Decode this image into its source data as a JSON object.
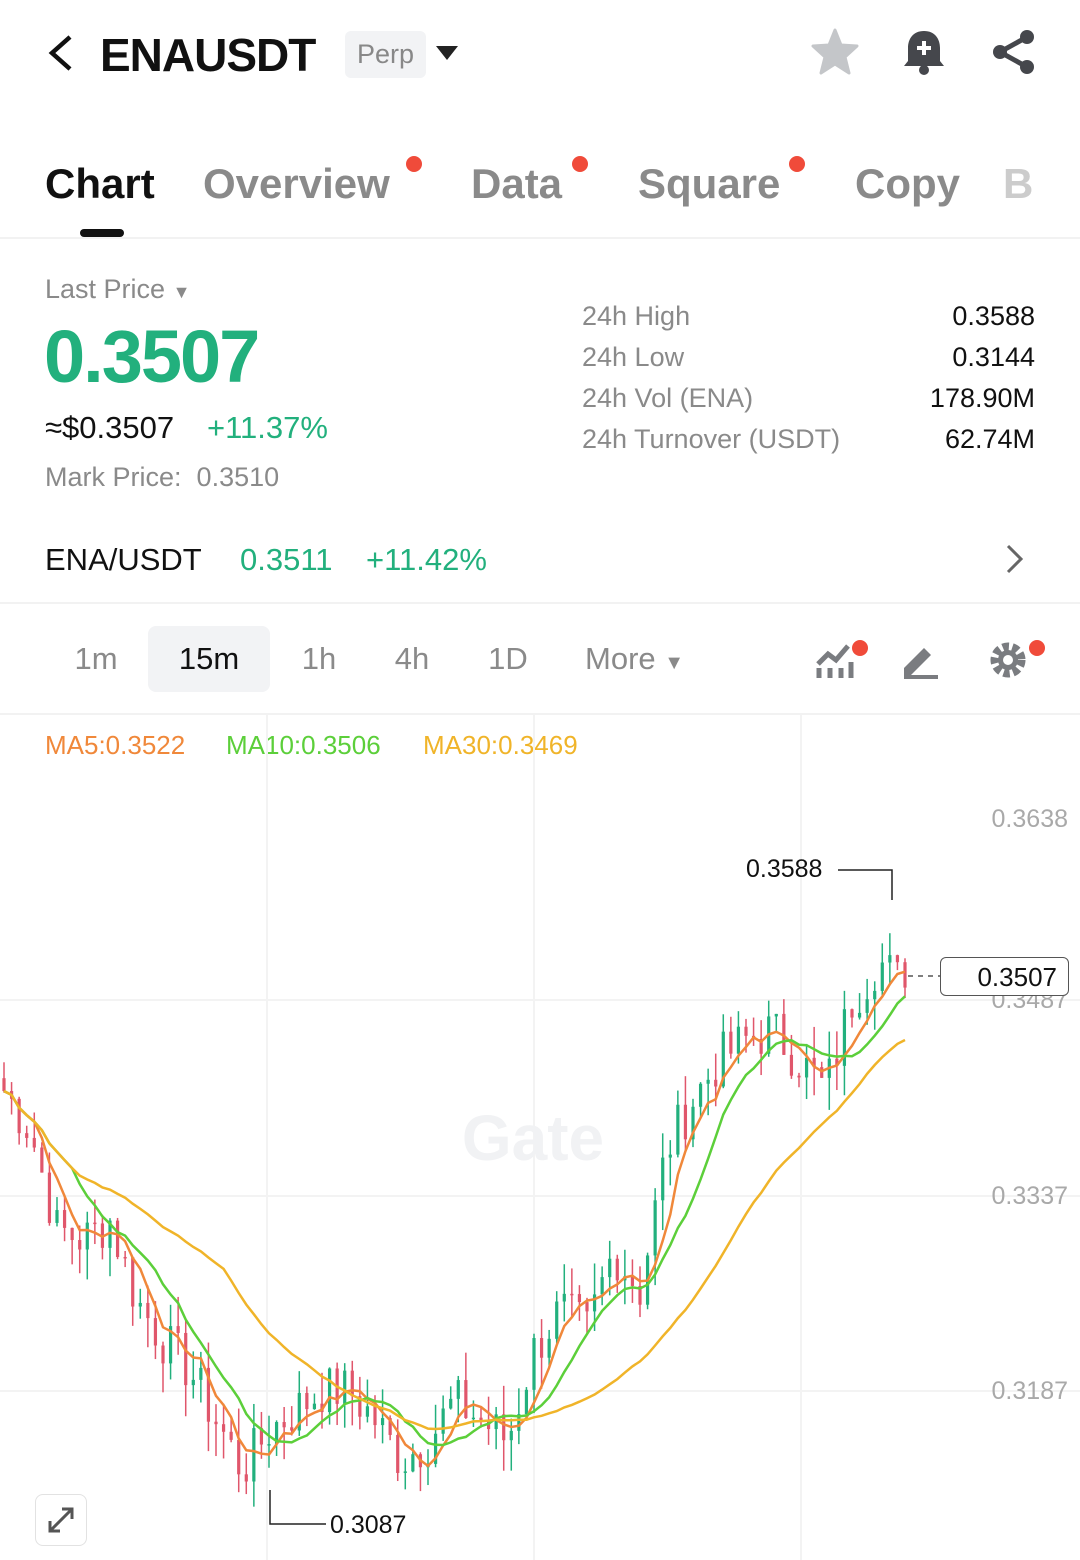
{
  "header": {
    "symbol": "ENAUSDT",
    "type_badge": "Perp"
  },
  "tabs": [
    {
      "label": "Chart",
      "active": true,
      "dot": false
    },
    {
      "label": "Overview",
      "dot": true
    },
    {
      "label": "Data",
      "dot": true
    },
    {
      "label": "Square",
      "dot": true
    },
    {
      "label": "Copy",
      "dot": false
    },
    {
      "label": "B",
      "dot": false
    }
  ],
  "price": {
    "label": "Last Price",
    "value": "0.3507",
    "usd": "≈$0.3507",
    "change": "+11.37%",
    "mark_label": "Mark Price:",
    "mark_value": "0.3510"
  },
  "stats": [
    {
      "label": "24h High",
      "value": "0.3588"
    },
    {
      "label": "24h Low",
      "value": "0.3144"
    },
    {
      "label": "24h Vol (ENA)",
      "value": "178.90M"
    },
    {
      "label": "24h Turnover (USDT)",
      "value": "62.74M"
    }
  ],
  "spot": {
    "pair": "ENA/USDT",
    "price": "0.3511",
    "change": "+11.42%"
  },
  "timeframes": [
    "1m",
    "15m",
    "1h",
    "4h",
    "1D"
  ],
  "timeframe_active": "15m",
  "more_label": "More",
  "ma": {
    "ma5": "MA5:0.3522",
    "ma10": "MA10:0.3506",
    "ma30": "MA30:0.3469"
  },
  "colors": {
    "up": "#22b07d",
    "down": "#e0566b",
    "ma5": "#f0883a",
    "ma10": "#5ccf3a",
    "ma30": "#f0b429",
    "accent_dot": "#f04b3a"
  },
  "watermark": "Gate",
  "chart_data": {
    "type": "candlestick",
    "y_ticks": [
      "0.3638",
      "0.3487",
      "0.3337",
      "0.3187"
    ],
    "ylim": [
      0.305,
      0.369
    ],
    "high_label": "0.3588",
    "low_label": "0.3087",
    "current_price_label": "0.3507",
    "closes": [
      0.3427,
      0.3396,
      0.3319,
      0.3311,
      0.3326,
      0.3264,
      0.3233,
      0.321,
      0.3171,
      0.3132,
      0.3163,
      0.3179,
      0.3194,
      0.3194,
      0.3171,
      0.314,
      0.3155,
      0.3186,
      0.3171,
      0.3155,
      0.3225,
      0.3257,
      0.3241,
      0.3303,
      0.3272,
      0.3381,
      0.342,
      0.3451,
      0.3466,
      0.3474,
      0.3451,
      0.3427,
      0.3497,
      0.3528,
      0.3507
    ]
  }
}
